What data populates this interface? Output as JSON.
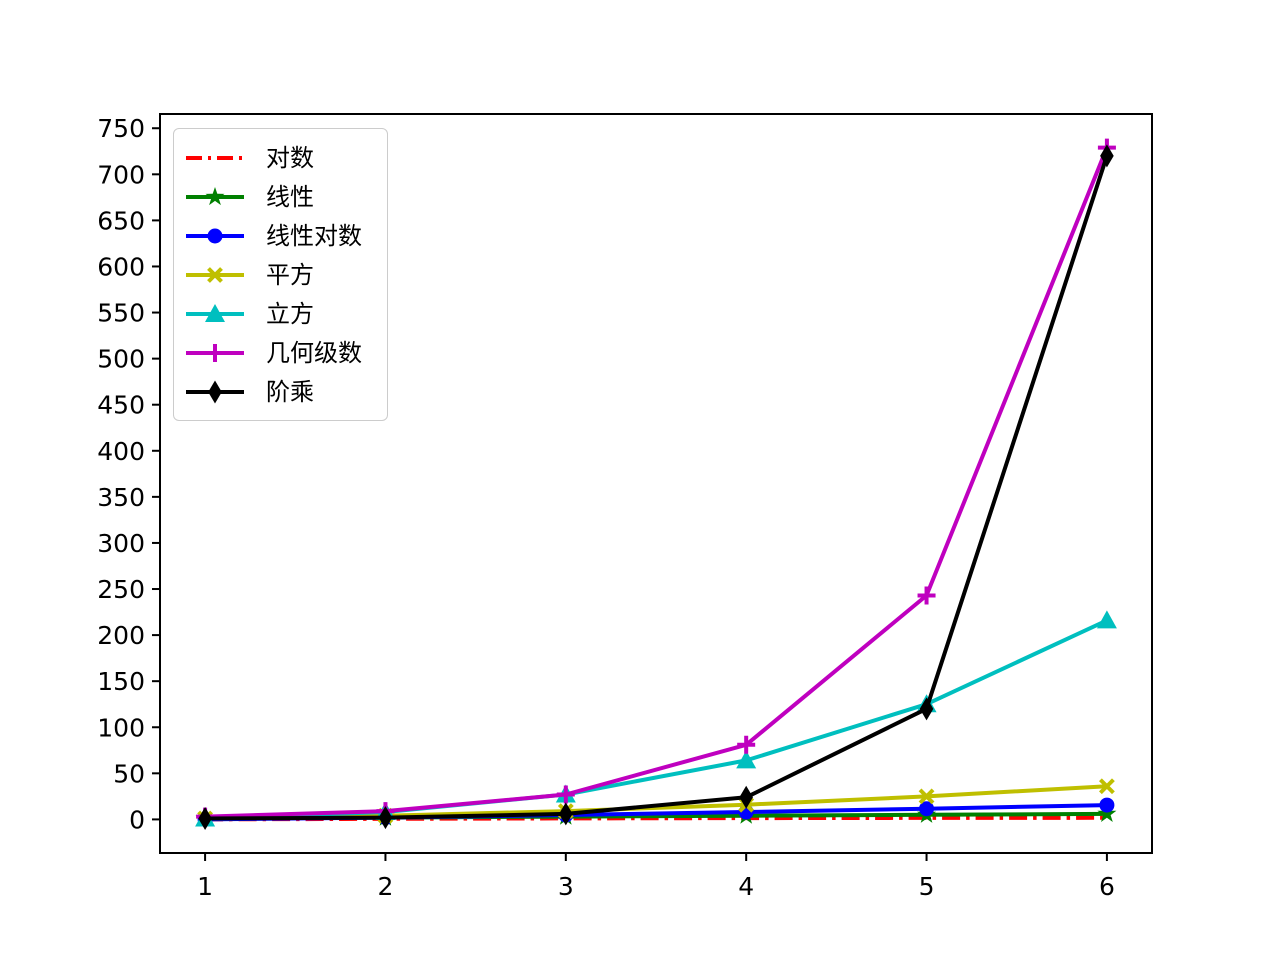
{
  "chart_data": {
    "type": "line",
    "title": "",
    "xlabel": "",
    "ylabel": "",
    "grid": false,
    "legend_position": "upper left",
    "x": [
      1,
      2,
      3,
      4,
      5,
      6
    ],
    "xtick_labels": [
      "1",
      "2",
      "3",
      "4",
      "5",
      "6"
    ],
    "ytick_values": [
      0,
      50,
      100,
      150,
      200,
      250,
      300,
      350,
      400,
      450,
      500,
      550,
      600,
      650,
      700,
      750
    ],
    "ytick_labels": [
      "0",
      "50",
      "100",
      "150",
      "200",
      "250",
      "300",
      "350",
      "400",
      "450",
      "500",
      "550",
      "600",
      "650",
      "700",
      "750"
    ],
    "xlim": [
      0.75,
      6.25
    ],
    "ylim": [
      -36.45,
      765.45
    ],
    "series": [
      {
        "name": "对数",
        "color": "#ff0000",
        "linestyle": "dashdot",
        "marker": "none",
        "values": [
          0,
          0.69,
          1.1,
          1.39,
          1.61,
          1.79
        ]
      },
      {
        "name": "线性",
        "color": "#008000",
        "linestyle": "solid",
        "marker": "star",
        "values": [
          1,
          2,
          3,
          4,
          5,
          6
        ]
      },
      {
        "name": "线性对数",
        "color": "#0000ff",
        "linestyle": "solid",
        "marker": "circle",
        "values": [
          0,
          2,
          4.75,
          8,
          11.61,
          15.51
        ]
      },
      {
        "name": "平方",
        "color": "#bfbf00",
        "linestyle": "solid",
        "marker": "x",
        "values": [
          1,
          4,
          9,
          16,
          25,
          36
        ]
      },
      {
        "name": "立方",
        "color": "#00bfbf",
        "linestyle": "solid",
        "marker": "triangle",
        "values": [
          1,
          8,
          27,
          64,
          125,
          216
        ]
      },
      {
        "name": "几何级数",
        "color": "#bf00bf",
        "linestyle": "solid",
        "marker": "plus",
        "values": [
          3,
          9,
          27,
          81,
          243,
          729
        ]
      },
      {
        "name": "阶乘",
        "color": "#000000",
        "linestyle": "solid",
        "marker": "diamond",
        "values": [
          1,
          2,
          6,
          24,
          120,
          720
        ]
      }
    ],
    "axis_color": "#000000",
    "background_color": "#ffffff"
  }
}
